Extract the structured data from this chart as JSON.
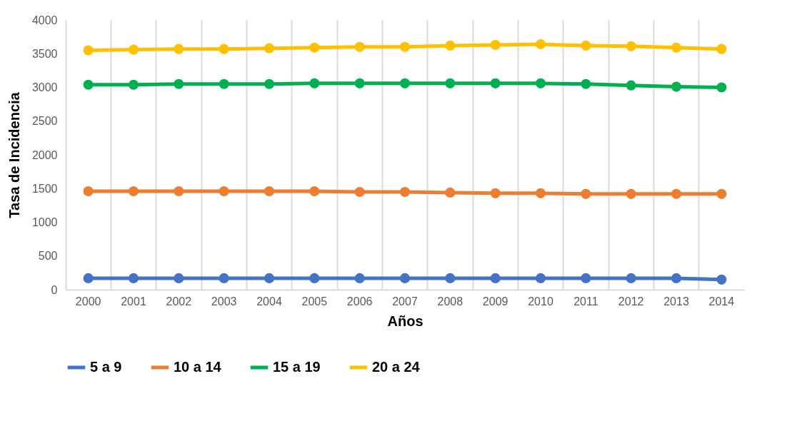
{
  "chart_data": {
    "type": "line",
    "xlabel": "Años",
    "ylabel": "Tasa de Incidencia",
    "categories": [
      "2000",
      "2001",
      "2002",
      "2003",
      "2004",
      "2005",
      "2006",
      "2007",
      "2008",
      "2009",
      "2010",
      "2011",
      "2012",
      "2013",
      "2014"
    ],
    "series": [
      {
        "name": "5 a 9",
        "color": "#4472c4",
        "values": [
          170,
          170,
          170,
          170,
          170,
          170,
          170,
          170,
          170,
          170,
          170,
          170,
          170,
          170,
          150
        ]
      },
      {
        "name": "10 a 14",
        "color": "#ed7d31",
        "values": [
          1460,
          1460,
          1460,
          1460,
          1460,
          1460,
          1450,
          1450,
          1440,
          1430,
          1430,
          1420,
          1420,
          1420,
          1420
        ]
      },
      {
        "name": "15 a 19",
        "color": "#00b050",
        "values": [
          3040,
          3040,
          3050,
          3050,
          3050,
          3060,
          3060,
          3060,
          3060,
          3060,
          3060,
          3050,
          3030,
          3010,
          3000
        ]
      },
      {
        "name": "20 a 24",
        "color": "#ffc000",
        "values": [
          3550,
          3560,
          3570,
          3570,
          3580,
          3590,
          3600,
          3600,
          3620,
          3630,
          3640,
          3620,
          3610,
          3590,
          3570
        ]
      }
    ],
    "ylim": [
      0,
      4000
    ],
    "yticks": [
      0,
      500,
      1000,
      1500,
      2000,
      2500,
      3000,
      3500,
      4000
    ],
    "grid": "x",
    "legend": "bottom",
    "marker": "circle",
    "line_style": "solid"
  }
}
